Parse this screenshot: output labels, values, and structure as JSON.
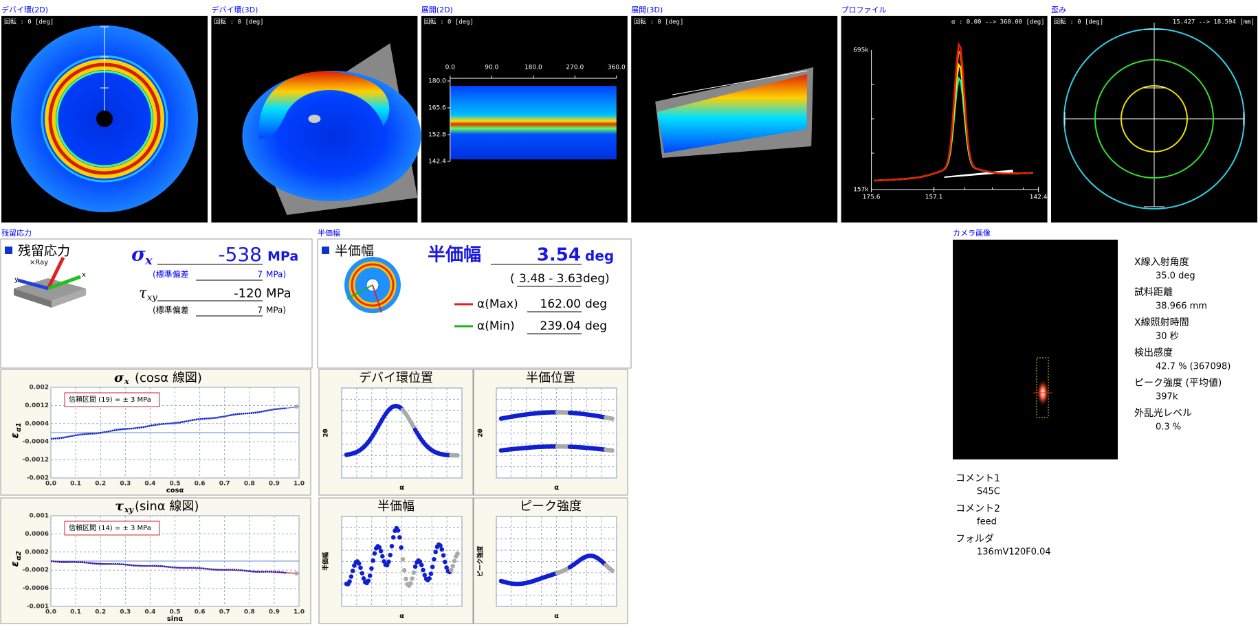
{
  "top_panels": [
    {
      "title": "デバイ環(2D)",
      "rotation": "回転 : 0 [deg]"
    },
    {
      "title": "デバイ環(3D)",
      "rotation": "回転 : 0 [deg]"
    },
    {
      "title": "展開(2D)",
      "rotation": "回転 : 0 [deg]",
      "xticks": [
        "0.0",
        "90.0",
        "180.0",
        "270.0",
        "360.0"
      ],
      "yticks": [
        "180.0",
        "165.6",
        "152.8",
        "142.4"
      ]
    },
    {
      "title": "展開(3D)",
      "rotation": "回転 : 0 [deg]"
    },
    {
      "title": "プロファイル",
      "range": "α : 0.00 --> 360.00 [deg]",
      "yticks": [
        "695k",
        "157k"
      ],
      "xticks": [
        "175.6",
        "157.1",
        "142.4"
      ]
    },
    {
      "title": "歪み",
      "rotation": "回転 : 0 [deg]",
      "range": "15.427 --> 18.594 [mm]"
    }
  ],
  "residual_stress": {
    "section_title": "残留応力",
    "heading": "残留応力",
    "axes_labels": [
      "×Ray",
      "y",
      "x"
    ],
    "sigma": {
      "symbol": "σ",
      "sub": "x",
      "value": "-538",
      "unit": "MPa",
      "std_label": "(標準偏差",
      "std_value": "7",
      "std_unit": "MPa)"
    },
    "tau": {
      "symbol": "τ",
      "sub": "xy",
      "value": "-120",
      "unit": "MPa",
      "std_label": "(標準偏差",
      "std_value": "7",
      "std_unit": "MPa)"
    }
  },
  "half_width": {
    "section_title": "半価幅",
    "heading": "半価幅",
    "big_label": "半価幅",
    "value": "3.54",
    "unit": "deg",
    "range_open": "(",
    "range": "3.48 - 3.63",
    "range_close": "deg)",
    "alpha_max": {
      "label": "α(Max)",
      "value": "162.00",
      "unit": "deg"
    },
    "alpha_min": {
      "label": "α(Min)",
      "value": "239.04",
      "unit": "deg"
    }
  },
  "cos_chart": {
    "title_symbol": "σ",
    "title_sub": "x",
    "title_rest": "(cosα 線図)",
    "confidence": "信頼区間 (19) = ± 3 MPa",
    "ylabel": "ε",
    "ylabel_sub": "α1",
    "xlabel": "cosα",
    "yticks": [
      "0.002",
      "0.0012",
      "0.0004",
      "-0.0004",
      "-0.0012",
      "-0.002"
    ],
    "xticks": [
      "0.0",
      "0.1",
      "0.2",
      "0.3",
      "0.4",
      "0.5",
      "0.6",
      "0.7",
      "0.8",
      "0.9",
      "1.0"
    ]
  },
  "sin_chart": {
    "title_symbol": "τ",
    "title_sub": "xy",
    "title_rest": "(sinα 線図)",
    "confidence": "信頼区間 (14) = ± 3 MPa",
    "ylabel": "ε",
    "ylabel_sub": "α2",
    "xlabel": "sinα",
    "yticks": [
      "0.001",
      "0.0006",
      "0.0002",
      "-0.0002",
      "-0.0006",
      "-0.001"
    ],
    "xticks": [
      "0.0",
      "0.1",
      "0.2",
      "0.3",
      "0.4",
      "0.5",
      "0.6",
      "0.7",
      "0.8",
      "0.9",
      "1.0"
    ]
  },
  "mini_charts": [
    {
      "title": "デバイ環位置",
      "ylabel": "2θ",
      "xlabel": "α"
    },
    {
      "title": "半価位置",
      "ylabel": "2θ",
      "xlabel": "α"
    },
    {
      "title": "半価幅",
      "ylabel": "半価幅",
      "xlabel": "α"
    },
    {
      "title": "ピーク強度",
      "ylabel": "ピーク強度",
      "xlabel": "α"
    }
  ],
  "camera": {
    "title": "カメラ画像",
    "info": [
      {
        "label": "X線入射角度",
        "value": "35.0 deg"
      },
      {
        "label": "試料距離",
        "value": "38.966 mm"
      },
      {
        "label": "X線照射時間",
        "value": "30 秒"
      },
      {
        "label": "検出感度",
        "value": "42.7 % (367098)"
      },
      {
        "label": "ピーク強度 (平均値)",
        "value": "397k"
      },
      {
        "label": "外乱光レベル",
        "value": "0.3 %"
      }
    ],
    "comments": [
      {
        "label": "コメント1",
        "value": "S45C"
      },
      {
        "label": "コメント2",
        "value": "feed"
      },
      {
        "label": "フォルダ",
        "value": "136mV120F0.04"
      }
    ]
  }
}
